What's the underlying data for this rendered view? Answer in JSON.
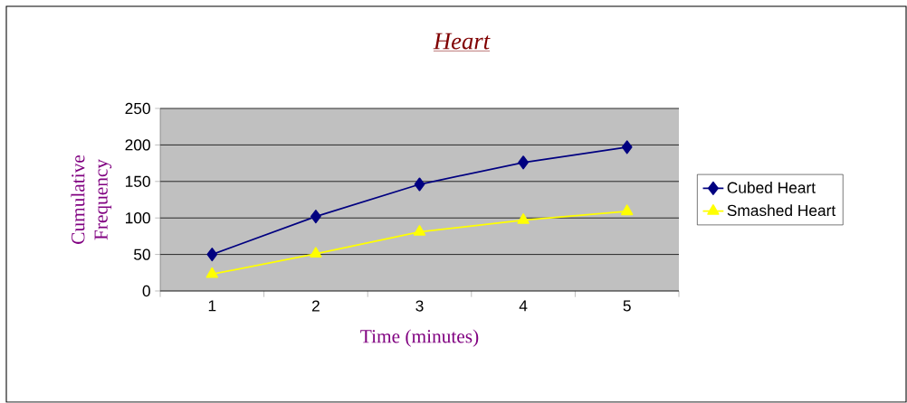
{
  "chart_data": {
    "type": "line",
    "title": "Heart",
    "xlabel": "Time (minutes)",
    "ylabel": "Cumulative Frequency",
    "categories": [
      "1",
      "2",
      "3",
      "4",
      "5"
    ],
    "series": [
      {
        "name": "Cubed Heart",
        "color": "#000080",
        "marker": "diamond",
        "values": [
          50,
          102,
          146,
          176,
          197
        ]
      },
      {
        "name": "Smashed Heart",
        "color": "#ffff00",
        "marker": "triangle",
        "values": [
          23,
          51,
          81,
          97,
          109
        ]
      }
    ],
    "ylim": [
      0,
      250
    ],
    "yticks": [
      0,
      50,
      100,
      150,
      200,
      250
    ],
    "grid": "y",
    "legend": "right",
    "line_style": "solid"
  }
}
